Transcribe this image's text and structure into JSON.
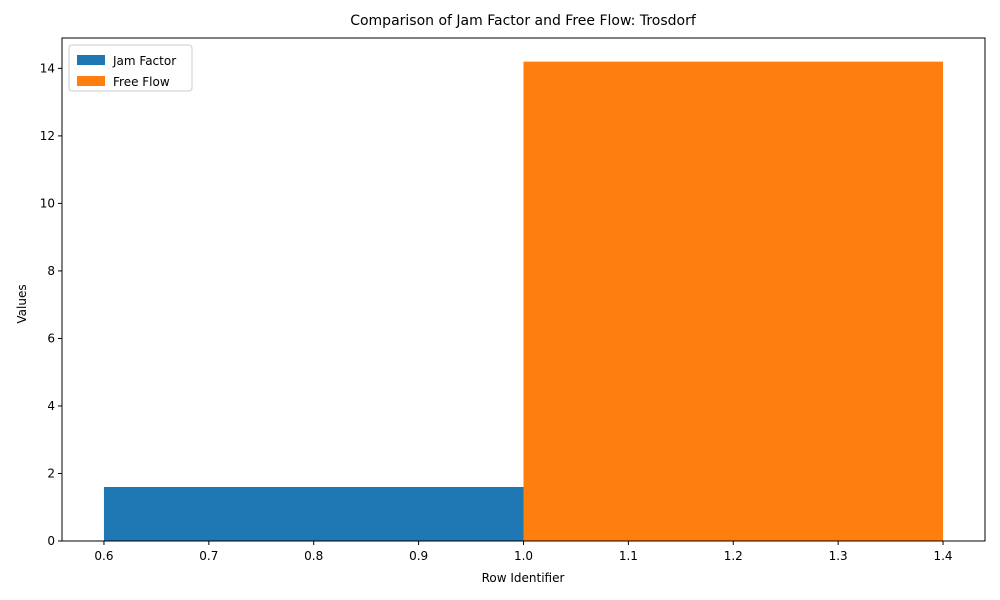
{
  "chart_data": {
    "type": "bar",
    "title": "Comparison of Jam Factor and Free Flow: Trosdorf",
    "xlabel": "Row Identifier",
    "ylabel": "Values",
    "xlim": [
      0.56,
      1.44
    ],
    "ylim": [
      0,
      14.9
    ],
    "x_ticks": [
      "0.6",
      "0.7",
      "0.8",
      "0.9",
      "1.0",
      "1.1",
      "1.2",
      "1.3",
      "1.4"
    ],
    "y_ticks": [
      "0",
      "2",
      "4",
      "6",
      "8",
      "10",
      "12",
      "14"
    ],
    "legend_position": "top-left",
    "grid": false,
    "series": [
      {
        "name": "Jam Factor",
        "color": "#1f77b4",
        "x_start": 0.6,
        "x_end": 1.0,
        "value": 1.6
      },
      {
        "name": "Free Flow",
        "color": "#ff7f0e",
        "x_start": 1.0,
        "x_end": 1.4,
        "value": 14.2
      }
    ]
  }
}
